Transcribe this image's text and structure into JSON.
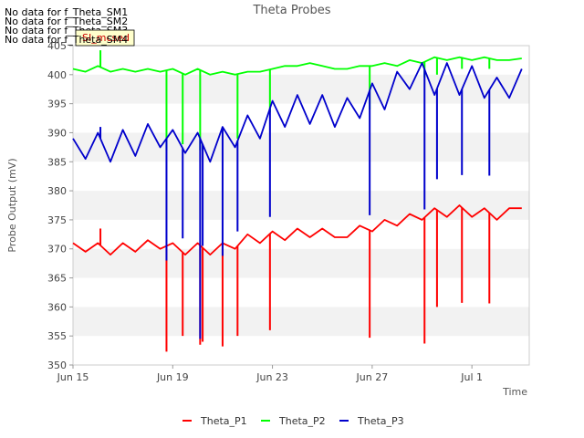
{
  "no_data_messages": [
    "No data for f_Theta_SM1",
    "No data for f_Theta_SM2",
    "No data for f_Theta_SM3",
    "No data for f_Theta_SM4"
  ],
  "badge_label": "SI_mcsed",
  "chart_data": {
    "type": "line",
    "title": "Theta Probes",
    "xlabel": "Time",
    "ylabel": "Probe Output (mV)",
    "ylim": [
      350,
      405
    ],
    "y_ticks": [
      350,
      355,
      360,
      365,
      370,
      375,
      380,
      385,
      390,
      395,
      400,
      405
    ],
    "x_start": "2024-06-15",
    "x_range_days": [
      0,
      18.3
    ],
    "x_ticks": [
      {
        "day": 0,
        "label": "Jun 15"
      },
      {
        "day": 4,
        "label": "Jun 19"
      },
      {
        "day": 8,
        "label": "Jun 23"
      },
      {
        "day": 12,
        "label": "Jun 27"
      },
      {
        "day": 16,
        "label": "Jul 1"
      }
    ],
    "x_values": "days",
    "grid": "horizontal bands",
    "legend": "bottom-center",
    "series": [
      {
        "name": "Theta_P1",
        "color": "#ff0000",
        "x": [
          0.0,
          0.5,
          1.0,
          1.5,
          2.0,
          2.5,
          3.0,
          3.5,
          4.0,
          4.5,
          5.0,
          5.5,
          6.0,
          6.5,
          7.0,
          7.5,
          8.0,
          8.5,
          9.0,
          9.5,
          10.0,
          10.5,
          11.0,
          11.5,
          12.0,
          12.5,
          13.0,
          13.5,
          14.0,
          14.5,
          15.0,
          15.5,
          16.0,
          16.5,
          17.0,
          17.5,
          18.0
        ],
        "values": [
          371,
          369.5,
          371,
          369,
          371,
          369.5,
          371.5,
          370,
          371,
          369,
          371,
          369,
          371,
          370,
          372.5,
          371,
          373,
          371.5,
          373.5,
          372,
          373.5,
          372,
          372,
          374,
          373,
          375,
          374,
          376,
          375,
          377,
          375.5,
          377.5,
          375.5,
          377,
          375,
          377,
          377
        ],
        "spikes": [
          {
            "x": 1.1,
            "y": 373.5
          },
          {
            "x": 3.75,
            "y": 352.3
          },
          {
            "x": 4.4,
            "y": 355
          },
          {
            "x": 5.1,
            "y": 353.5
          },
          {
            "x": 5.2,
            "y": 354
          },
          {
            "x": 6.0,
            "y": 353.2
          },
          {
            "x": 6.6,
            "y": 355
          },
          {
            "x": 7.9,
            "y": 356
          },
          {
            "x": 11.9,
            "y": 354.7
          },
          {
            "x": 14.1,
            "y": 353.7
          },
          {
            "x": 14.6,
            "y": 360
          },
          {
            "x": 15.6,
            "y": 360.7
          },
          {
            "x": 16.7,
            "y": 360.6
          }
        ]
      },
      {
        "name": "Theta_P2",
        "color": "#00ff00",
        "x": [
          0.0,
          0.5,
          1.0,
          1.5,
          2.0,
          2.5,
          3.0,
          3.5,
          4.0,
          4.5,
          5.0,
          5.5,
          6.0,
          6.5,
          7.0,
          7.5,
          8.0,
          8.5,
          9.0,
          9.5,
          10.0,
          10.5,
          11.0,
          11.5,
          12.0,
          12.5,
          13.0,
          13.5,
          14.0,
          14.5,
          15.0,
          15.5,
          16.0,
          16.5,
          17.0,
          17.5,
          18.0
        ],
        "values": [
          401,
          400.5,
          401.5,
          400.5,
          401,
          400.5,
          401,
          400.5,
          401,
          400,
          401,
          400,
          400.5,
          400,
          400.5,
          400.5,
          401,
          401.5,
          401.5,
          402,
          401.5,
          401,
          401,
          401.5,
          401.5,
          402,
          401.5,
          402.5,
          402,
          403,
          402.5,
          403,
          402.5,
          403,
          402.5,
          402.5,
          402.8
        ],
        "spikes": [
          {
            "x": 1.1,
            "y": 404.2
          },
          {
            "x": 3.75,
            "y": 387
          },
          {
            "x": 4.4,
            "y": 388
          },
          {
            "x": 5.1,
            "y": 387
          },
          {
            "x": 6.6,
            "y": 389
          },
          {
            "x": 7.9,
            "y": 393.5
          },
          {
            "x": 11.9,
            "y": 394
          },
          {
            "x": 14.1,
            "y": 399.5
          },
          {
            "x": 14.6,
            "y": 400
          },
          {
            "x": 15.6,
            "y": 401
          },
          {
            "x": 16.7,
            "y": 401
          }
        ]
      },
      {
        "name": "Theta_P3",
        "color": "#0000cc",
        "x": [
          0.0,
          0.5,
          1.0,
          1.5,
          2.0,
          2.5,
          3.0,
          3.5,
          4.0,
          4.5,
          5.0,
          5.5,
          6.0,
          6.5,
          7.0,
          7.5,
          8.0,
          8.5,
          9.0,
          9.5,
          10.0,
          10.5,
          11.0,
          11.5,
          12.0,
          12.5,
          13.0,
          13.5,
          14.0,
          14.5,
          15.0,
          15.5,
          16.0,
          16.5,
          17.0,
          17.5,
          18.0
        ],
        "values": [
          389,
          385.5,
          390,
          385,
          390.5,
          386,
          391.5,
          387.5,
          390.5,
          386.5,
          390,
          385,
          391,
          387.5,
          393,
          389,
          395.5,
          391,
          396.5,
          391.5,
          396.5,
          391,
          396,
          392.5,
          398.5,
          394,
          400.5,
          397.5,
          402,
          396.5,
          402,
          396.5,
          401.5,
          396,
          399.5,
          396,
          401
        ],
        "spikes": [
          {
            "x": 1.1,
            "y": 391
          },
          {
            "x": 3.75,
            "y": 368
          },
          {
            "x": 4.4,
            "y": 371.8
          },
          {
            "x": 5.1,
            "y": 354.5
          },
          {
            "x": 5.2,
            "y": 370.5
          },
          {
            "x": 6.0,
            "y": 368.8
          },
          {
            "x": 6.6,
            "y": 373
          },
          {
            "x": 7.9,
            "y": 375.5
          },
          {
            "x": 11.9,
            "y": 375.8
          },
          {
            "x": 14.1,
            "y": 376.8
          },
          {
            "x": 14.6,
            "y": 382
          },
          {
            "x": 15.6,
            "y": 382.7
          },
          {
            "x": 16.7,
            "y": 382.6
          }
        ]
      }
    ]
  }
}
